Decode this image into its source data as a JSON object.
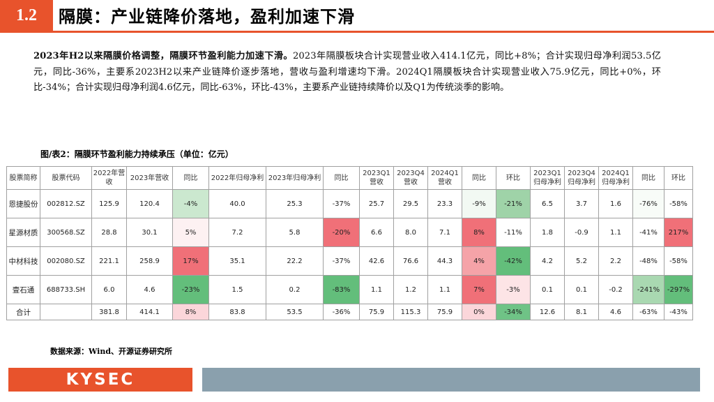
{
  "header": {
    "section_number": "1.2",
    "title": "隔膜：产业链降价落地，盈利加速下滑"
  },
  "paragraph": {
    "lead": "2023年H2以来隔膜价格调整，隔膜环节盈利能力加速下滑。",
    "body": "2023年隔膜板块合计实现营业收入414.1亿元，同比+8%；合计实现归母净利润53.5亿元，同比-36%，主要系2023H2以来产业链降价逐步落地，营收与盈利增速均下滑。2024Q1隔膜板块合计实现营业收入75.9亿元，同比+0%，环比-34%；合计实现归母净利润4.6亿元，同比-63%，环比-43%，主要系产业链持续降价以及Q1为传统淡季的影响。"
  },
  "caption": "图/表2：隔膜环节盈利能力持续承压（单位：亿元）",
  "table": {
    "headers": [
      "股票简称",
      "股票代码",
      "2022年营收",
      "2023年营收",
      "同比",
      "2022年归母净利",
      "2023年归母净利",
      "同比",
      "2023Q1营收",
      "2023Q4营收",
      "2024Q1营收",
      "同比",
      "环比",
      "2023Q1归母净利",
      "2023Q4归母净利",
      "2024Q1归母净利",
      "同比",
      "环比"
    ],
    "rows": [
      {
        "cells": [
          "恩捷股份",
          "002812.SZ",
          "125.9",
          "120.4",
          "-4%",
          "40.0",
          "25.3",
          "-37%",
          "25.7",
          "29.5",
          "23.3",
          "-9%",
          "-21%",
          "6.5",
          "3.7",
          "1.6",
          "-76%",
          "-58%"
        ],
        "colors": {
          "4": "#cbe8cf",
          "7": "#ffffff",
          "11": "#f2f9f3",
          "12": "#9fd3a8",
          "16": "#f8fcf8",
          "17": "#ffffff"
        }
      },
      {
        "cells": [
          "星源材质",
          "300568.SZ",
          "28.8",
          "30.1",
          "5%",
          "7.2",
          "5.8",
          "-20%",
          "6.6",
          "8.0",
          "7.1",
          "8%",
          "-11%",
          "1.8",
          "-0.9",
          "1.1",
          "-41%",
          "217%"
        ],
        "colors": {
          "4": "#fdf1f2",
          "7": "#f07078",
          "11": "#f07078",
          "12": "#ffffff",
          "16": "#ffffff",
          "17": "#f07078"
        }
      },
      {
        "cells": [
          "中材科技",
          "002080.SZ",
          "221.1",
          "258.9",
          "17%",
          "35.1",
          "22.2",
          "-37%",
          "42.6",
          "76.6",
          "44.3",
          "4%",
          "-42%",
          "4.2",
          "5.2",
          "2.2",
          "-48%",
          "-58%"
        ],
        "colors": {
          "4": "#f07078",
          "7": "#ffffff",
          "11": "#f5a3a8",
          "12": "#63be7b",
          "16": "#ffffff",
          "17": "#ffffff"
        }
      },
      {
        "cells": [
          "壹石通",
          "688733.SH",
          "6.0",
          "4.6",
          "-23%",
          "1.5",
          "0.2",
          "-83%",
          "1.1",
          "1.2",
          "1.1",
          "7%",
          "-3%",
          "0.1",
          "0.1",
          "-0.2",
          "-241%",
          "-297%"
        ],
        "colors": {
          "4": "#63be7b",
          "7": "#63be7b",
          "11": "#f07078",
          "12": "#fde4e6",
          "16": "#a9d8b1",
          "17": "#63be7b"
        }
      }
    ],
    "total": {
      "cells": [
        "合计",
        "",
        "381.8",
        "414.1",
        "8%",
        "83.8",
        "53.5",
        "-36%",
        "75.9",
        "115.3",
        "75.9",
        "0%",
        "-34%",
        "12.6",
        "8.1",
        "4.6",
        "-63%",
        "-43%"
      ],
      "colors": {
        "4": "#fbd6da",
        "7": "#ffffff",
        "11": "#fbd6da",
        "12": "#6fc386",
        "16": "#ffffff",
        "17": "#ffffff"
      }
    }
  },
  "source": "数据来源：Wind、开源证券研究所",
  "footer": {
    "logo": "KYSEC"
  },
  "colors": {
    "accent": "#e8532c",
    "footer_band": "#8aa0ad",
    "heat_red": "#f07078",
    "heat_green": "#63be7b"
  }
}
